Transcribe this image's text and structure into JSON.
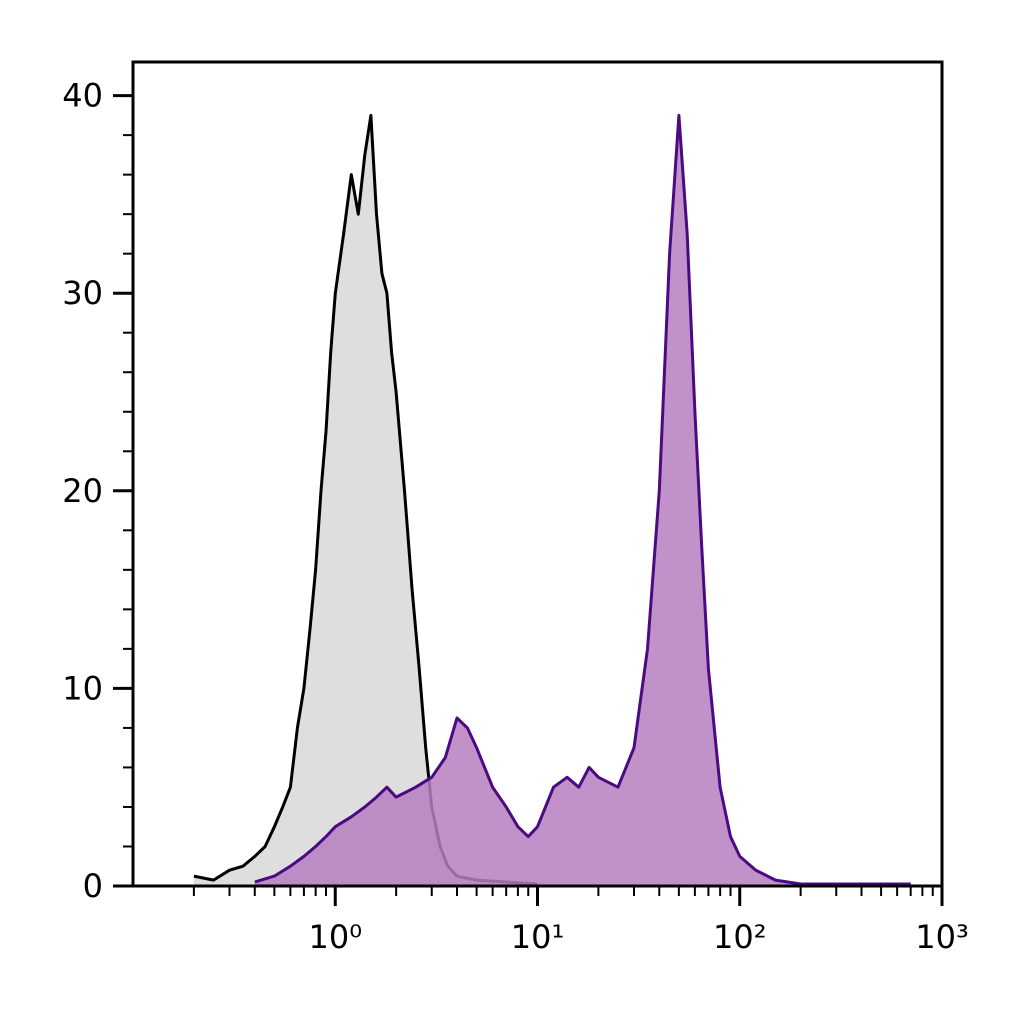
{
  "chart_data": {
    "type": "histogram-overlay",
    "xscale": "log",
    "xlim": [
      0.1,
      1000
    ],
    "ylim": [
      0,
      41.7
    ],
    "xticks": [
      {
        "value": 1,
        "label": "10⁰"
      },
      {
        "value": 10,
        "label": "10¹"
      },
      {
        "value": 100,
        "label": "10²"
      },
      {
        "value": 1000,
        "label": "10³"
      }
    ],
    "yticks": [
      0,
      10,
      20,
      30,
      40
    ],
    "series": [
      {
        "color": "#000000",
        "fill": "#dedede",
        "x": [
          0.2,
          0.25,
          0.3,
          0.35,
          0.4,
          0.45,
          0.5,
          0.55,
          0.6,
          0.65,
          0.7,
          0.75,
          0.8,
          0.85,
          0.9,
          0.95,
          1.0,
          1.1,
          1.2,
          1.3,
          1.4,
          1.5,
          1.6,
          1.7,
          1.8,
          1.9,
          2.0,
          2.2,
          2.4,
          2.6,
          2.8,
          3.0,
          3.3,
          3.6,
          4,
          5,
          7,
          10
        ],
        "values": [
          0.5,
          0.3,
          0.8,
          1,
          1.5,
          2,
          3,
          4,
          5,
          8,
          10,
          13,
          16,
          20,
          23,
          27,
          30,
          33,
          36,
          34,
          37,
          39,
          34,
          31,
          30,
          27,
          25,
          20,
          15,
          11,
          7,
          4,
          2,
          1,
          0.5,
          0.3,
          0.2,
          0.1
        ]
      },
      {
        "color": "#4b0a82",
        "fill": "#b67fc0",
        "x": [
          0.4,
          0.5,
          0.6,
          0.7,
          0.8,
          0.9,
          1.0,
          1.2,
          1.4,
          1.6,
          1.8,
          2.0,
          2.5,
          3.0,
          3.5,
          4.0,
          4.5,
          5.0,
          6.0,
          7.0,
          8.0,
          9.0,
          10,
          12,
          14,
          16,
          18,
          20,
          25,
          30,
          35,
          40,
          45,
          50,
          55,
          60,
          65,
          70,
          80,
          90,
          100,
          120,
          150,
          200,
          500,
          700
        ],
        "values": [
          0.2,
          0.5,
          1,
          1.5,
          2,
          2.5,
          3,
          3.5,
          4,
          4.5,
          5,
          4.5,
          5,
          5.5,
          6.5,
          8.5,
          8,
          7,
          5,
          4,
          3,
          2.5,
          3,
          5,
          5.5,
          5,
          6,
          5.5,
          5,
          7,
          12,
          20,
          32,
          39,
          33,
          24,
          17,
          11,
          5,
          2.5,
          1.5,
          0.8,
          0.3,
          0.1,
          0.1,
          0.1
        ]
      }
    ]
  }
}
